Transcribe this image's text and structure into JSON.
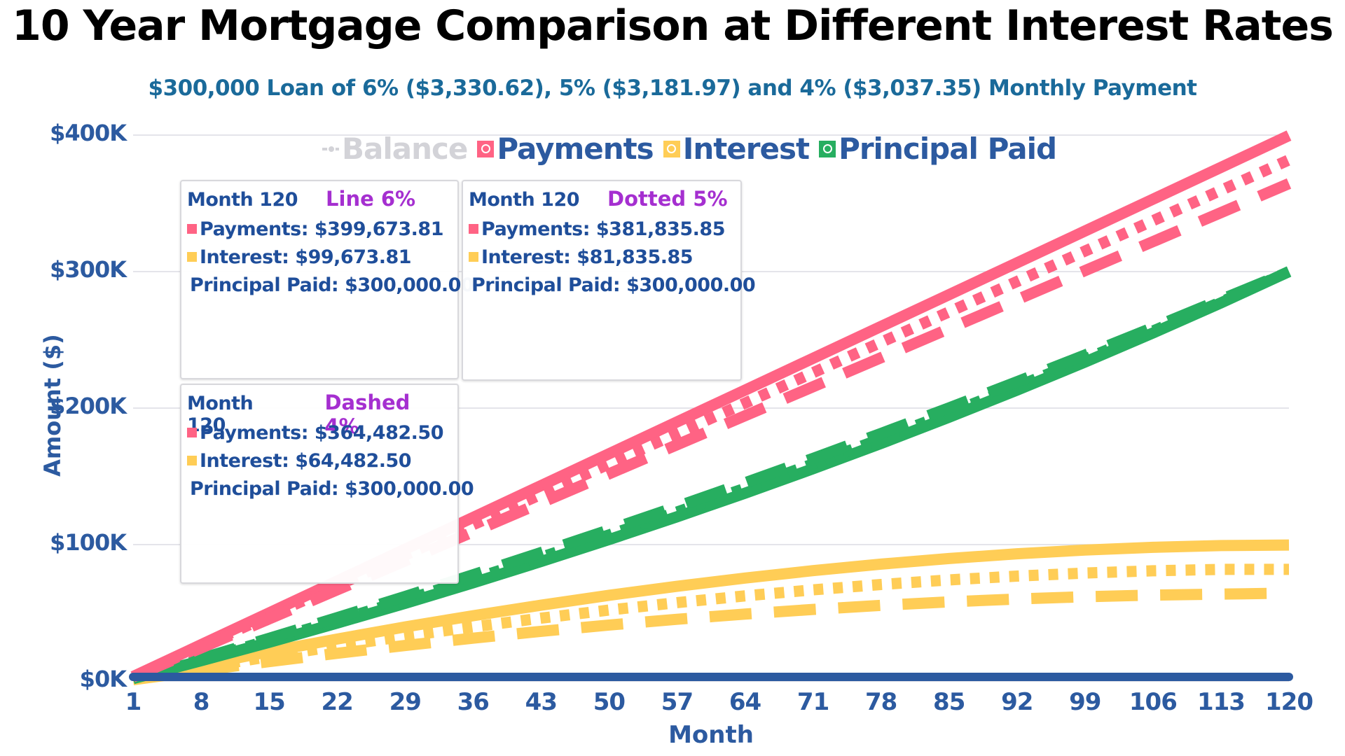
{
  "title": "10 Year Mortgage Comparison at Different Interest Rates",
  "subtitle": "$300,000 Loan of 6% ($3,330.62), 5% ($3,181.97) and 4% ($3,037.35) Monthly Payment",
  "colors": {
    "payments": "#ff6384",
    "interest": "#ffcd56",
    "principal": "#27ae60",
    "balance": "#2c5aa0",
    "axis_text": "#2c5aa0",
    "subtitle": "#1a6a9a",
    "tag": "#a52fd0",
    "grid": "#dcdce4"
  },
  "legend": [
    {
      "label": "Balance",
      "key": "balance",
      "hidden": true
    },
    {
      "label": "Payments",
      "key": "payments",
      "hidden": false
    },
    {
      "label": "Interest",
      "key": "interest",
      "hidden": false
    },
    {
      "label": "Principal Paid",
      "key": "principal",
      "hidden": false
    }
  ],
  "tooltips": [
    {
      "month": "Month 120",
      "tag": "Line 6%",
      "payments": "Payments: $399,673.81",
      "interest": "Interest: $99,673.81",
      "principal": "Principal Paid: $300,000.00"
    },
    {
      "month": "Month 120",
      "tag": "Dotted 5%",
      "payments": "Payments: $381,835.85",
      "interest": "Interest: $81,835.85",
      "principal": "Principal Paid: $300,000.00"
    },
    {
      "month": "Month 120",
      "tag": "Dashed 4%",
      "payments": "Payments: $364,482.50",
      "interest": "Interest: $64,482.50",
      "principal": "Principal Paid: $300,000.00"
    }
  ],
  "chart_data": {
    "type": "line",
    "title": "10 Year Mortgage Comparison at Different Interest Rates",
    "subtitle": "$300,000 Loan of 6% ($3,330.62), 5% ($3,181.97) and 4% ($3,037.35) Monthly Payment",
    "xlabel": "Month",
    "ylabel": "Amount ($)",
    "ylim": [
      0,
      400000
    ],
    "xlim": [
      1,
      120
    ],
    "grid": true,
    "legend_position": "top",
    "x_ticks": [
      "1",
      "8",
      "15",
      "22",
      "29",
      "36",
      "43",
      "50",
      "57",
      "64",
      "71",
      "78",
      "85",
      "92",
      "99",
      "106",
      "113",
      "120"
    ],
    "y_ticks": [
      "$0K",
      "$100K",
      "$200K",
      "$300K",
      "$400K"
    ],
    "x": [
      1,
      8,
      15,
      22,
      29,
      36,
      43,
      50,
      57,
      64,
      71,
      78,
      85,
      92,
      99,
      106,
      113,
      120
    ],
    "series": [
      {
        "name": "Payments",
        "rate": "6%",
        "style": "solid",
        "color": "#ff6384",
        "values": [
          3331,
          26645,
          49959,
          73274,
          96588,
          119902,
          143217,
          166531,
          189845,
          213160,
          236474,
          259788,
          283103,
          306417,
          329731,
          353046,
          376360,
          399673.81
        ]
      },
      {
        "name": "Payments",
        "rate": "5%",
        "style": "dotted",
        "color": "#ff6384",
        "values": [
          3182,
          25456,
          47730,
          70003,
          92277,
          114551,
          136825,
          159099,
          181372,
          203646,
          225920,
          248194,
          270467,
          292741,
          315015,
          337289,
          359563,
          381835.85
        ]
      },
      {
        "name": "Payments",
        "rate": "4%",
        "style": "dashed",
        "color": "#ff6384",
        "values": [
          3037,
          24299,
          45560,
          66822,
          88083,
          109345,
          130606,
          151868,
          173129,
          194390,
          215652,
          236913,
          258175,
          279436,
          300698,
          321959,
          343221,
          364482.5
        ]
      },
      {
        "name": "Interest",
        "rate": "6%",
        "style": "solid",
        "color": "#ffcd56",
        "values": [
          1500,
          11740,
          21548,
          30804,
          39656,
          47886,
          55604,
          62845,
          69464,
          75498,
          80909,
          85697,
          89791,
          93261,
          95999,
          98006,
          99279,
          99673.81
        ]
      },
      {
        "name": "Interest",
        "rate": "5%",
        "style": "dotted",
        "color": "#ffcd56",
        "values": [
          1250,
          9774,
          17906,
          25620,
          32907,
          39713,
          46111,
          52036,
          57477,
          62424,
          66855,
          70763,
          74127,
          76936,
          79170,
          80815,
          81848,
          81835.85
        ]
      },
      {
        "name": "Interest",
        "rate": "4%",
        "style": "dashed",
        "color": "#ffcd56",
        "values": [
          1000,
          7808,
          14260,
          20352,
          26088,
          31458,
          36455,
          41068,
          45283,
          49100,
          52502,
          55482,
          58035,
          60147,
          61801,
          62996,
          63715,
          64482.5
        ]
      },
      {
        "name": "Principal Paid",
        "rate": "6%",
        "style": "solid",
        "color": "#27ae60",
        "values": [
          1831,
          14905,
          28411,
          42470,
          56932,
          72016,
          87613,
          103686,
          120381,
          137662,
          155565,
          174091,
          193312,
          213156,
          233732,
          255040,
          277081,
          300000
        ]
      },
      {
        "name": "Principal Paid",
        "rate": "5%",
        "style": "dotted",
        "color": "#27ae60",
        "values": [
          1932,
          15682,
          29824,
          44383,
          59370,
          74838,
          90714,
          107063,
          123895,
          141222,
          159065,
          177431,
          196340,
          215805,
          235845,
          256474,
          277715,
          300000
        ]
      },
      {
        "name": "Principal Paid",
        "rate": "4%",
        "style": "dashed",
        "color": "#27ae60",
        "values": [
          2037,
          16491,
          31300,
          46470,
          61995,
          77887,
          94151,
          110800,
          127846,
          145290,
          163150,
          181431,
          200140,
          219289,
          238897,
          258963,
          279506,
          300000
        ]
      },
      {
        "name": "Balance",
        "rate": "all",
        "style": "hidden",
        "color": "#2c5aa0",
        "values": []
      }
    ]
  }
}
